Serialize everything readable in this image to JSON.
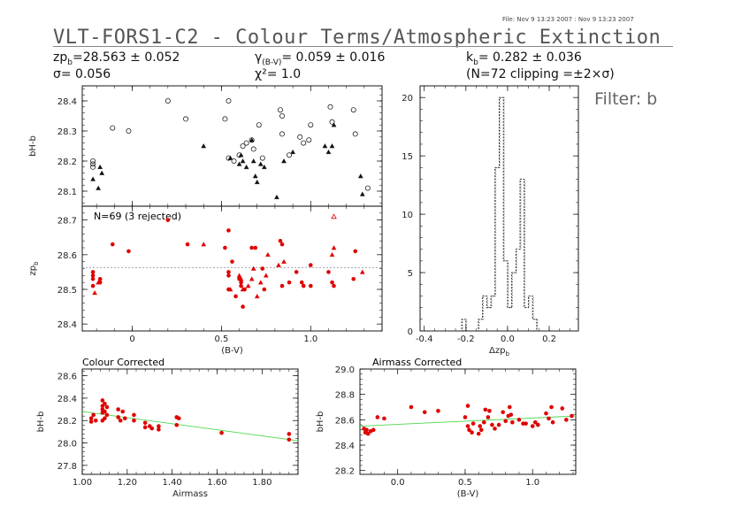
{
  "header": {
    "file_info": "File: Nov  9 13:23 2007 : Nov  9 13:23 2007",
    "title": "VLT-FORS1-C2 - Colour Terms/Atmospheric Extinction",
    "zp_label": "zp",
    "zp_sub": "b",
    "zp_value": "=28.563 ± 0.052",
    "sigma": "σ=  0.056",
    "gamma_label": "γ",
    "gamma_sub": "(B-V)",
    "gamma_value": "=  0.059 ± 0.016",
    "chi2": "χ²=    1.0",
    "k_label": "k",
    "k_sub": "b",
    "k_value": "= 0.282 ± 0.036",
    "clipping": "(N=72 clipping =±2×σ)",
    "filter": "Filter: b"
  },
  "chart_data": [
    {
      "id": "bH-b vs (B-V)",
      "type": "scatter",
      "ylabel": "bH-b",
      "ylim": [
        28.05,
        28.45
      ],
      "xlim": [
        -0.28,
        1.4
      ],
      "yticks": [
        "28.1",
        "28.2",
        "28.3",
        "28.4"
      ],
      "series": [
        {
          "marker": "circle",
          "points": [
            [
              -0.22,
              28.2
            ],
            [
              -0.22,
              28.19
            ],
            [
              -0.22,
              28.18
            ],
            [
              -0.11,
              28.31
            ],
            [
              -0.02,
              28.3
            ],
            [
              0.2,
              28.4
            ],
            [
              0.3,
              28.34
            ],
            [
              0.52,
              28.34
            ],
            [
              0.54,
              28.4
            ],
            [
              0.54,
              28.21
            ],
            [
              0.57,
              28.2
            ],
            [
              0.6,
              28.22
            ],
            [
              0.62,
              28.25
            ],
            [
              0.64,
              28.26
            ],
            [
              0.67,
              28.27
            ],
            [
              0.68,
              28.24
            ],
            [
              0.71,
              28.32
            ],
            [
              0.73,
              28.21
            ],
            [
              0.83,
              28.37
            ],
            [
              0.84,
              28.35
            ],
            [
              0.84,
              28.29
            ],
            [
              0.88,
              28.22
            ],
            [
              0.94,
              28.28
            ],
            [
              0.96,
              28.26
            ],
            [
              0.99,
              28.27
            ],
            [
              1.0,
              28.32
            ],
            [
              1.11,
              28.38
            ],
            [
              1.12,
              28.33
            ],
            [
              1.24,
              28.37
            ],
            [
              1.25,
              28.29
            ],
            [
              1.32,
              28.11
            ]
          ]
        },
        {
          "marker": "triangle",
          "points": [
            [
              -0.22,
              28.14
            ],
            [
              -0.19,
              28.11
            ],
            [
              -0.18,
              28.18
            ],
            [
              -0.17,
              28.16
            ],
            [
              0.4,
              28.25
            ],
            [
              0.55,
              28.21
            ],
            [
              0.6,
              28.19
            ],
            [
              0.61,
              28.22
            ],
            [
              0.62,
              28.2
            ],
            [
              0.64,
              28.18
            ],
            [
              0.67,
              28.27
            ],
            [
              0.68,
              28.2
            ],
            [
              0.69,
              28.15
            ],
            [
              0.7,
              28.13
            ],
            [
              0.72,
              28.19
            ],
            [
              0.74,
              28.18
            ],
            [
              0.81,
              28.08
            ],
            [
              0.85,
              28.2
            ],
            [
              0.9,
              28.23
            ],
            [
              1.08,
              28.25
            ],
            [
              1.1,
              28.23
            ],
            [
              1.12,
              28.25
            ],
            [
              1.13,
              28.32
            ],
            [
              1.28,
              28.15
            ],
            [
              1.29,
              28.09
            ]
          ]
        }
      ]
    },
    {
      "id": "zp vs (B-V)",
      "type": "scatter",
      "ylabel": "zp",
      "ylabel_sub": "b",
      "xlabel": "(B-V)",
      "annotation": "N=69 (3 rejected)",
      "zp_line": 28.563,
      "ylim": [
        28.38,
        28.74
      ],
      "xlim": [
        -0.28,
        1.4
      ],
      "yticks": [
        "28.4",
        "28.5",
        "28.6",
        "28.7"
      ],
      "xticks": [
        "0",
        "0.5",
        "1.0"
      ],
      "xtick_values": [
        0,
        0.5,
        1.0
      ],
      "series": [
        {
          "marker": "dot",
          "points": [
            [
              -0.22,
              28.55
            ],
            [
              -0.22,
              28.54
            ],
            [
              -0.22,
              28.53
            ],
            [
              -0.22,
              28.51
            ],
            [
              -0.18,
              28.53
            ],
            [
              -0.18,
              28.52
            ],
            [
              -0.11,
              28.63
            ],
            [
              -0.02,
              28.61
            ],
            [
              0.2,
              28.7
            ],
            [
              0.31,
              28.63
            ],
            [
              0.52,
              28.62
            ],
            [
              0.54,
              28.67
            ],
            [
              0.54,
              28.55
            ],
            [
              0.54,
              28.54
            ],
            [
              0.54,
              28.5
            ],
            [
              0.56,
              28.58
            ],
            [
              0.58,
              28.48
            ],
            [
              0.6,
              28.53
            ],
            [
              0.61,
              28.51
            ],
            [
              0.61,
              28.52
            ],
            [
              0.62,
              28.45
            ],
            [
              0.63,
              28.5
            ],
            [
              0.67,
              28.62
            ],
            [
              0.69,
              28.62
            ],
            [
              0.73,
              28.56
            ],
            [
              0.74,
              28.5
            ],
            [
              0.83,
              28.64
            ],
            [
              0.84,
              28.63
            ],
            [
              0.84,
              28.51
            ],
            [
              0.88,
              28.52
            ],
            [
              0.92,
              28.55
            ],
            [
              0.95,
              28.52
            ],
            [
              0.96,
              28.51
            ],
            [
              1.0,
              28.51
            ],
            [
              1.0,
              28.57
            ],
            [
              1.1,
              28.55
            ],
            [
              1.12,
              28.52
            ],
            [
              1.13,
              28.51
            ],
            [
              1.24,
              28.53
            ],
            [
              1.25,
              28.61
            ]
          ]
        },
        {
          "marker": "triangle",
          "points": [
            [
              -0.21,
              28.49
            ],
            [
              -0.19,
              28.52
            ],
            [
              0.4,
              28.63
            ],
            [
              0.55,
              28.5
            ],
            [
              0.6,
              28.54
            ],
            [
              0.61,
              28.53
            ],
            [
              0.62,
              28.5
            ],
            [
              0.65,
              28.51
            ],
            [
              0.67,
              28.53
            ],
            [
              0.68,
              28.56
            ],
            [
              0.7,
              28.48
            ],
            [
              0.72,
              28.52
            ],
            [
              0.75,
              28.54
            ],
            [
              0.76,
              28.6
            ],
            [
              0.82,
              28.57
            ],
            [
              0.85,
              28.58
            ],
            [
              1.12,
              28.6
            ],
            [
              1.13,
              28.62
            ],
            [
              1.29,
              28.55
            ]
          ]
        },
        {
          "marker": "open-triangle",
          "points": [
            [
              1.13,
              28.71
            ]
          ]
        }
      ]
    },
    {
      "id": "histogram",
      "type": "bar",
      "xlabel": "Δzp",
      "xlabel_sub": "b",
      "xlim": [
        -0.42,
        0.34
      ],
      "ylim": [
        0,
        21
      ],
      "yticks": [
        "0",
        "5",
        "10",
        "15",
        "20"
      ],
      "xticks": [
        "-0.4",
        "-0.2",
        "0.0",
        "0.2"
      ],
      "xtick_values": [
        -0.4,
        -0.2,
        0.0,
        0.2
      ],
      "bin_width": 0.02,
      "bins": [
        [
          -0.22,
          1
        ],
        [
          -0.2,
          0
        ],
        [
          -0.18,
          0
        ],
        [
          -0.16,
          0
        ],
        [
          -0.14,
          1
        ],
        [
          -0.12,
          3
        ],
        [
          -0.1,
          2
        ],
        [
          -0.08,
          3
        ],
        [
          -0.06,
          14
        ],
        [
          -0.04,
          20
        ],
        [
          -0.02,
          6
        ],
        [
          0.0,
          2
        ],
        [
          0.02,
          5
        ],
        [
          0.04,
          7
        ],
        [
          0.06,
          13
        ],
        [
          0.08,
          2
        ],
        [
          0.1,
          3
        ],
        [
          0.12,
          1
        ]
      ]
    },
    {
      "id": "Colour Corrected",
      "type": "scatter",
      "title": "Colour Corrected",
      "ylabel": "bH-b",
      "xlabel": "Airmass",
      "xlim": [
        1.0,
        1.96
      ],
      "ylim": [
        27.72,
        28.66
      ],
      "yticks": [
        "27.8",
        "28.0",
        "28.2",
        "28.4",
        "28.6"
      ],
      "xticks": [
        "1.00",
        "1.20",
        "1.40",
        "1.60",
        "1.80"
      ],
      "xtick_values": [
        1.0,
        1.2,
        1.4,
        1.6,
        1.8
      ],
      "fit_line": [
        [
          1.0,
          28.28
        ],
        [
          1.96,
          28.02
        ]
      ],
      "series": [
        {
          "marker": "dot",
          "points": [
            [
              1.04,
              28.19
            ],
            [
              1.04,
              28.22
            ],
            [
              1.05,
              28.25
            ],
            [
              1.06,
              28.2
            ],
            [
              1.09,
              28.38
            ],
            [
              1.09,
              28.33
            ],
            [
              1.09,
              28.3
            ],
            [
              1.09,
              28.27
            ],
            [
              1.09,
              28.2
            ],
            [
              1.1,
              28.35
            ],
            [
              1.1,
              28.28
            ],
            [
              1.1,
              28.22
            ],
            [
              1.11,
              28.32
            ],
            [
              1.11,
              28.25
            ],
            [
              1.16,
              28.3
            ],
            [
              1.16,
              28.23
            ],
            [
              1.17,
              28.2
            ],
            [
              1.18,
              28.28
            ],
            [
              1.19,
              28.22
            ],
            [
              1.23,
              28.25
            ],
            [
              1.23,
              28.2
            ],
            [
              1.28,
              28.18
            ],
            [
              1.28,
              28.14
            ],
            [
              1.3,
              28.15
            ],
            [
              1.31,
              28.13
            ],
            [
              1.34,
              28.15
            ],
            [
              1.34,
              28.12
            ],
            [
              1.42,
              28.23
            ],
            [
              1.42,
              28.16
            ],
            [
              1.43,
              28.22
            ],
            [
              1.62,
              28.09
            ],
            [
              1.92,
              28.08
            ],
            [
              1.92,
              28.03
            ]
          ]
        }
      ]
    },
    {
      "id": "Airmass Corrected",
      "type": "scatter",
      "title": "Airmass Corrected",
      "ylabel": "bH-b",
      "xlabel": "(B-V)",
      "xlim": [
        -0.28,
        1.32
      ],
      "ylim": [
        28.17,
        29.0
      ],
      "yticks": [
        "28.2",
        "28.4",
        "28.6",
        "28.8",
        "29.0"
      ],
      "xticks": [
        "0.0",
        "0.5",
        "1.0"
      ],
      "xtick_values": [
        0.0,
        0.5,
        1.0
      ],
      "fit_line": [
        [
          -0.28,
          28.55
        ],
        [
          1.32,
          28.63
        ]
      ],
      "series": [
        {
          "marker": "dot",
          "points": [
            [
              -0.25,
              28.53
            ],
            [
              -0.24,
              28.5
            ],
            [
              -0.23,
              28.52
            ],
            [
              -0.22,
              28.49
            ],
            [
              -0.2,
              28.51
            ],
            [
              -0.18,
              28.52
            ],
            [
              -0.15,
              28.62
            ],
            [
              -0.1,
              28.61
            ],
            [
              0.1,
              28.7
            ],
            [
              0.2,
              28.66
            ],
            [
              0.3,
              28.67
            ],
            [
              0.5,
              28.62
            ],
            [
              0.52,
              28.71
            ],
            [
              0.52,
              28.55
            ],
            [
              0.53,
              28.52
            ],
            [
              0.55,
              28.5
            ],
            [
              0.56,
              28.57
            ],
            [
              0.6,
              28.49
            ],
            [
              0.61,
              28.55
            ],
            [
              0.62,
              28.52
            ],
            [
              0.64,
              28.58
            ],
            [
              0.65,
              28.68
            ],
            [
              0.67,
              28.62
            ],
            [
              0.68,
              28.67
            ],
            [
              0.7,
              28.56
            ],
            [
              0.72,
              28.53
            ],
            [
              0.75,
              28.56
            ],
            [
              0.78,
              28.66
            ],
            [
              0.8,
              28.59
            ],
            [
              0.82,
              28.63
            ],
            [
              0.83,
              28.7
            ],
            [
              0.84,
              28.64
            ],
            [
              0.85,
              28.58
            ],
            [
              0.9,
              28.6
            ],
            [
              0.93,
              28.57
            ],
            [
              0.95,
              28.57
            ],
            [
              1.0,
              28.55
            ],
            [
              1.02,
              28.58
            ],
            [
              1.04,
              28.56
            ],
            [
              1.1,
              28.65
            ],
            [
              1.12,
              28.61
            ],
            [
              1.14,
              28.7
            ],
            [
              1.15,
              28.58
            ],
            [
              1.22,
              28.69
            ],
            [
              1.25,
              28.6
            ],
            [
              1.29,
              28.63
            ]
          ]
        }
      ]
    }
  ]
}
